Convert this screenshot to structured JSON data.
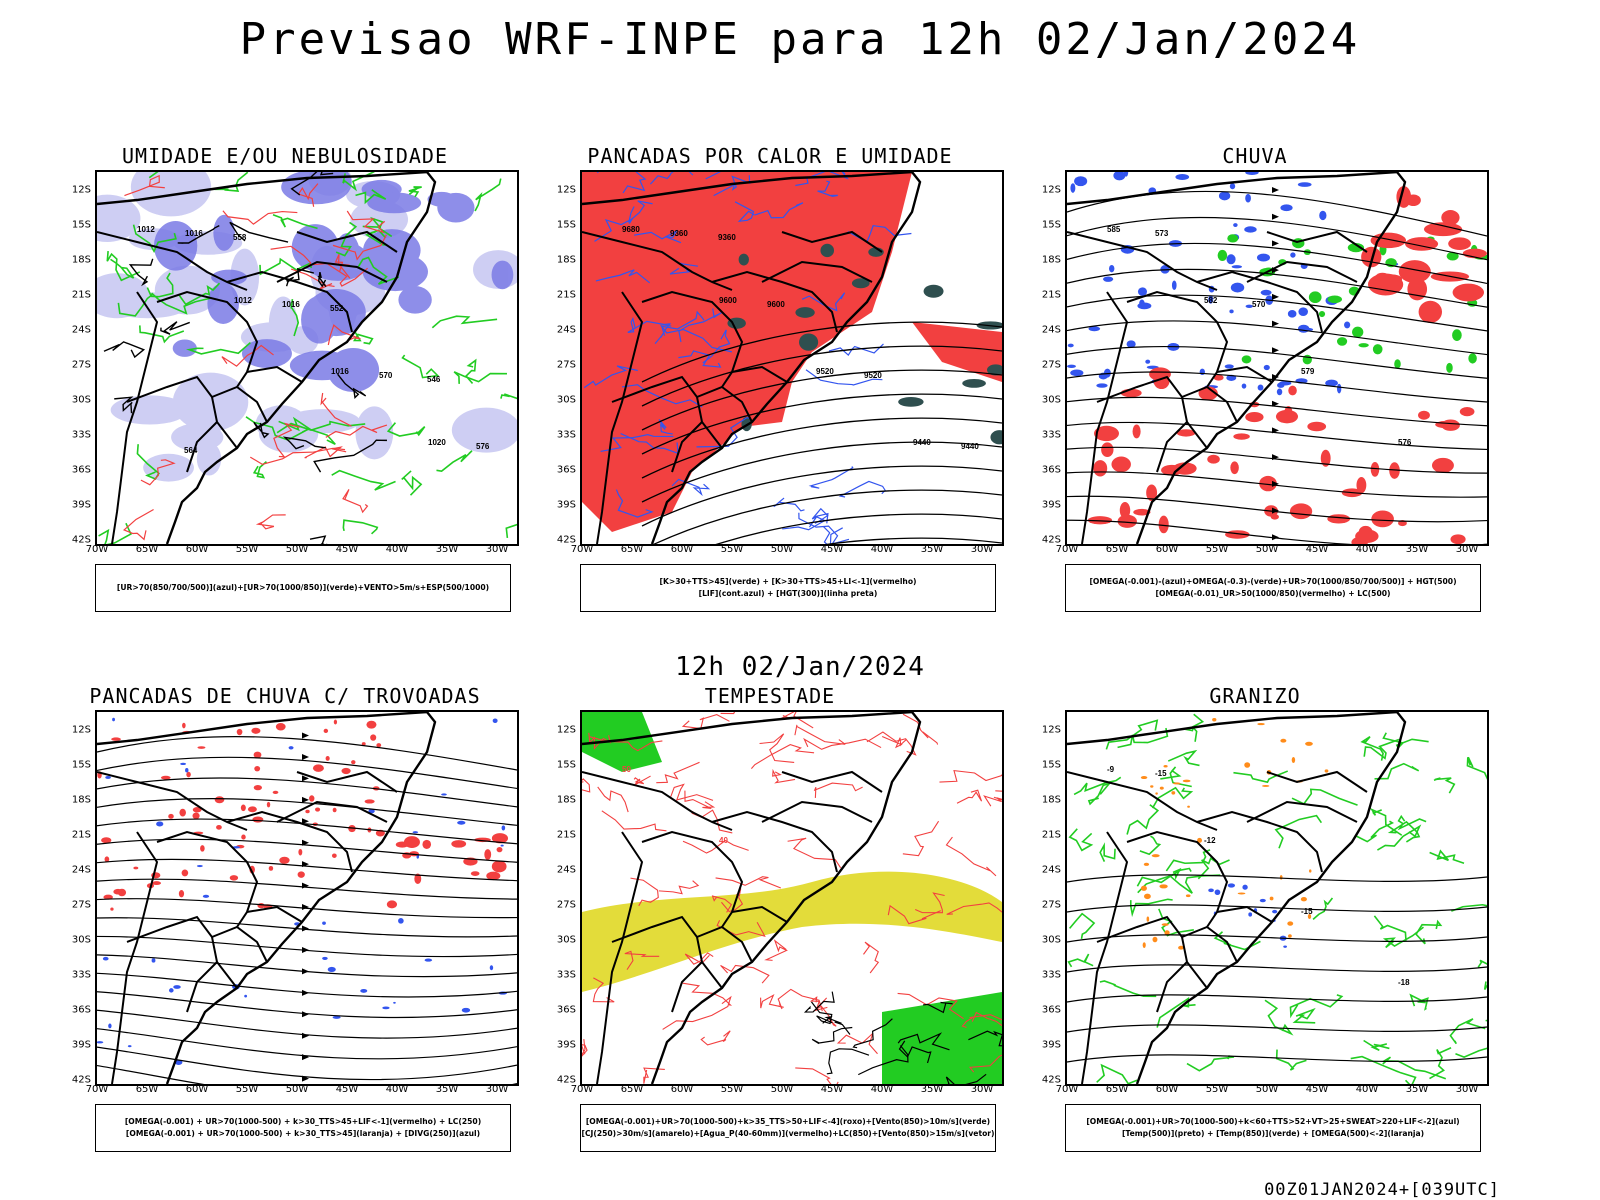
{
  "header": {
    "title": "Previsao WRF-INPE  para 12h 02/Jan/2024",
    "mid_time": "12h 02/Jan/2024",
    "footer": "00Z01JAN2024+[039UTC]"
  },
  "axes": {
    "lat_labels": [
      "12S",
      "15S",
      "18S",
      "21S",
      "24S",
      "27S",
      "30S",
      "33S",
      "36S",
      "39S",
      "42S"
    ],
    "lon_labels": [
      "70W",
      "65W",
      "60W",
      "55W",
      "50W",
      "45W",
      "40W",
      "35W",
      "30W"
    ]
  },
  "colors": {
    "humidity_blue": "#7b7be6",
    "humidity_light": "#c9c9f2",
    "green_contour": "#22cc22",
    "red_fill": "#f24040",
    "blue_contour": "#3355ee",
    "dark_green": "#2f4f4f",
    "yellow_fill": "#e3dc3a",
    "orange": "#ff8c1a"
  },
  "panels": [
    {
      "id": "umidade",
      "title": "UMIDADE E/OU NEBULOSIDADE",
      "legend": [
        "[UR>70(850/700/500)](azul)+[UR>70(1000/850)](verde)+VENTO>5m/s+ESP(500/1000)"
      ],
      "contour_labels": [
        "1012",
        "1012",
        "1016",
        "1020",
        "1016",
        "1016",
        "570",
        "576",
        "558",
        "552",
        "546",
        "564"
      ]
    },
    {
      "id": "pancadas-calor",
      "title": "PANCADAS POR CALOR E UMIDADE",
      "legend": [
        "[K>30+TTS>45](verde) + [K>30+TTS>45+LI<-1](vermelho)",
        "[LIF](cont.azul) + [HGT(300)](linha preta)"
      ],
      "contour_labels": [
        "9680",
        "9600",
        "9520",
        "9440",
        "9360",
        "9600",
        "9520",
        "9440",
        "9360"
      ]
    },
    {
      "id": "chuva",
      "title": "CHUVA",
      "legend": [
        "[OMEGA(-0.001)-(azul)+OMEGA(-0.3)-(verde)+UR>70(1000/850/700/500)] + HGT(500)",
        "[OMEGA(-0.01)_UR>50(1000/850)(vermelho) + LC(500)"
      ],
      "contour_labels": [
        "585",
        "582",
        "579",
        "576",
        "573",
        "570"
      ]
    },
    {
      "id": "trovoadas",
      "title": "PANCADAS DE CHUVA C/ TROVOADAS",
      "legend": [
        "[OMEGA(-0.001) + UR>70(1000-500) + k>30_TTS>45+LIF<-1](vermelho) + LC(250)",
        "[OMEGA(-0.001) + UR>70(1000-500) + k>30_TTS>45](laranja) + [DIVG(250)](azul)"
      ],
      "contour_labels": []
    },
    {
      "id": "tempestade",
      "title": "TEMPESTADE",
      "legend": [
        "[OMEGA(-0.001)+UR>70(1000-500)+k>35_TTS>50+LIF<-4](roxo)+[Vento(850)>10m/s](verde)",
        "[CJ(250)>30m/s](amarelo)+[Agua_P(40-60mm)](vermelho)+LC(850)+[Vento(850)>15m/s](vetor)"
      ],
      "contour_labels": [
        "50",
        "40"
      ]
    },
    {
      "id": "granizo",
      "title": "GRANIZO",
      "legend": [
        "[OMEGA(-0.001)+UR>70(1000-500)+k<60+TTS>52+VT>25+SWEAT>220+LIF<-2](azul)",
        "[Temp(500)](preto) + [Temp(850)](verde) + [OMEGA(500)<-2](laranja)"
      ],
      "contour_labels": [
        "-9",
        "-12",
        "-15",
        "-18",
        "-15"
      ]
    }
  ]
}
